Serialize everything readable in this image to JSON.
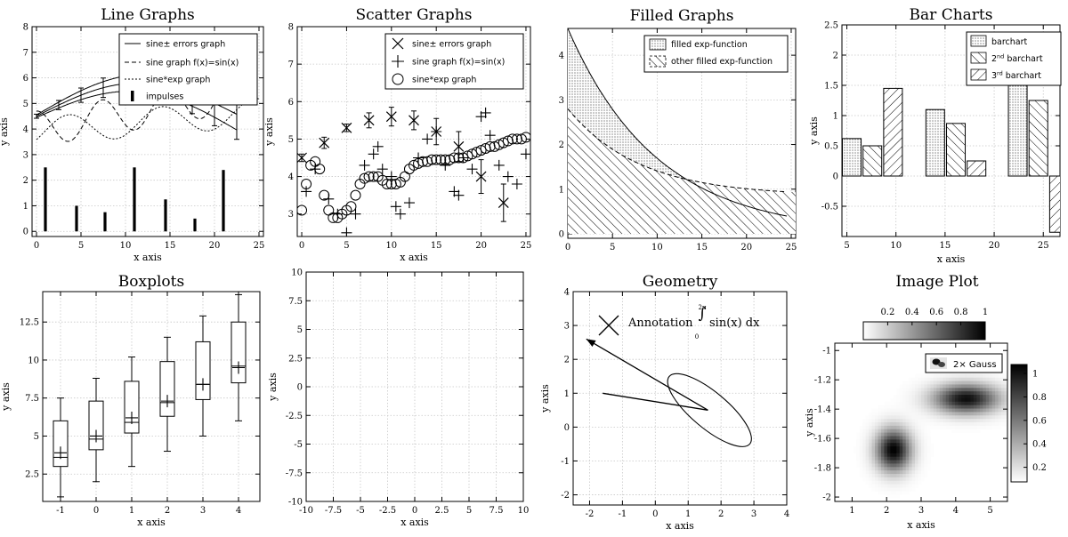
{
  "chart_data": [
    {
      "type": "line",
      "title": "Line Graphs",
      "xlabel": "x axis",
      "ylabel": "y axis",
      "xlim": [
        -0.5,
        25.5
      ],
      "ylim": [
        -0.2,
        8
      ],
      "xticks": [
        0,
        5,
        10,
        15,
        20,
        25
      ],
      "yticks": [
        0,
        1,
        2,
        3,
        4,
        5,
        6,
        7,
        8
      ],
      "grid": true,
      "legend_position": "top-right",
      "legend": [
        "sine± errors graph",
        "sine graph f(x)=sin(x)",
        "sine*exp graph",
        "impulses"
      ],
      "impulses": {
        "x": [
          1,
          4.5,
          7.7,
          11,
          14.5,
          17.8,
          21
        ],
        "y": [
          2.5,
          1,
          0.75,
          2.5,
          1.25,
          0.5,
          2.4
        ]
      }
    },
    {
      "type": "scatter",
      "title": "Scatter Graphs",
      "xlabel": "x axis",
      "ylabel": "y axis",
      "xlim": [
        -0.5,
        25.5
      ],
      "ylim": [
        2.4,
        8
      ],
      "xticks": [
        0,
        5,
        10,
        15,
        20,
        25
      ],
      "yticks": [
        3,
        4,
        5,
        6,
        7,
        8
      ],
      "grid": true,
      "legend_position": "top-right",
      "legend": [
        "sine± errors graph",
        "sine graph f(x)=sin(x)",
        "sine*exp graph"
      ],
      "series": [
        {
          "name": "sine± errors graph",
          "marker": "x",
          "x": [
            0,
            2.5,
            5,
            7.5,
            10,
            12.5,
            15,
            17.5,
            20,
            22.5
          ],
          "y": [
            4.5,
            4.9,
            5.3,
            5.5,
            5.6,
            5.5,
            5.2,
            4.8,
            4.0,
            3.3
          ],
          "err": [
            0.1,
            0.15,
            0.1,
            0.2,
            0.25,
            0.25,
            0.35,
            0.4,
            0.45,
            0.5
          ]
        },
        {
          "name": "sine graph f(x)=sin(x)",
          "marker": "+",
          "x": [
            0.5,
            1.5,
            3,
            4,
            5,
            6,
            7,
            8,
            8.5,
            9,
            10,
            10.5,
            11,
            12,
            13,
            14,
            15,
            16,
            17,
            17.5,
            18,
            19,
            20,
            20.5,
            21,
            22,
            23,
            24,
            25
          ],
          "y": [
            3.6,
            4.2,
            3.4,
            3.0,
            2.5,
            3.0,
            4.3,
            4.6,
            4.8,
            4.2,
            4.0,
            3.2,
            3.0,
            3.3,
            4.5,
            5.0,
            5.2,
            4.3,
            3.6,
            3.5,
            4.5,
            4.2,
            5.6,
            5.7,
            5.1,
            4.3,
            4.0,
            3.8,
            4.6
          ]
        },
        {
          "name": "sine*exp graph",
          "marker": "o",
          "x": [
            0,
            0.5,
            1,
            1.5,
            2,
            2.5,
            3,
            3.5,
            4,
            4.5,
            5,
            5.5,
            6,
            6.5,
            7,
            7.5,
            8,
            8.5,
            9,
            9.5,
            10,
            10.5,
            11,
            11.5,
            12,
            12.5,
            13,
            13.5,
            14,
            14.5,
            15,
            15.5,
            16,
            16.5,
            17,
            17.5,
            18,
            18.5,
            19,
            19.5,
            20,
            20.5,
            21,
            21.5,
            22,
            22.5,
            23,
            23.5,
            24,
            24.5,
            25
          ],
          "y": [
            3.1,
            3.8,
            4.3,
            4.4,
            4.2,
            3.5,
            3.1,
            2.9,
            2.9,
            3.0,
            3.1,
            3.2,
            3.5,
            3.8,
            3.95,
            4.0,
            4.0,
            4.0,
            3.9,
            3.8,
            3.8,
            3.8,
            3.85,
            4.0,
            4.2,
            4.3,
            4.35,
            4.4,
            4.4,
            4.45,
            4.45,
            4.45,
            4.45,
            4.45,
            4.5,
            4.5,
            4.5,
            4.55,
            4.6,
            4.65,
            4.7,
            4.75,
            4.8,
            4.8,
            4.85,
            4.9,
            4.95,
            5.0,
            5.0,
            5.0,
            5.05
          ]
        }
      ]
    },
    {
      "type": "area",
      "title": "Filled Graphs",
      "xlabel": "",
      "ylabel": "",
      "xlim": [
        0,
        25.5
      ],
      "ylim": [
        -0.1,
        4.6
      ],
      "xticks": [
        0,
        5,
        10,
        15,
        20,
        25
      ],
      "yticks": [
        0,
        1,
        2,
        3,
        4
      ],
      "grid": true,
      "legend_position": "top-right",
      "legend": [
        "filled exp-function",
        "other filled exp-function"
      ],
      "series": [
        {
          "name": "filled exp-function",
          "function": "4.6*exp(-x/10)"
        },
        {
          "name": "other filled exp-function",
          "function": "0.85+1.95*exp(-x/8)"
        }
      ]
    },
    {
      "type": "bar",
      "title": "Bar Charts",
      "xlabel": "x axis",
      "ylabel": "y axis",
      "xlim": [
        4.5,
        26.7
      ],
      "ylim": [
        -1,
        2.5
      ],
      "xticks": [
        5,
        10,
        15,
        20,
        25
      ],
      "yticks": [
        -0.5,
        0,
        0.5,
        1,
        1.5,
        2,
        2.5
      ],
      "grid": true,
      "legend_position": "top-right",
      "legend": [
        "barchart",
        "2nd barchart",
        "3rd barchart"
      ],
      "series": [
        {
          "name": "barchart",
          "x": [
            5.5,
            14,
            22.4
          ],
          "values": [
            0.62,
            1.1,
            1.9
          ]
        },
        {
          "name": "2nd barchart",
          "x": [
            7.6,
            16.1,
            24.5
          ],
          "values": [
            0.5,
            0.87,
            1.25
          ]
        },
        {
          "name": "3rd barchart",
          "x": [
            9.7,
            18.2,
            26.6
          ],
          "values": [
            1.45,
            0.25,
            -0.93
          ]
        }
      ]
    },
    {
      "type": "boxplot",
      "title": "Boxplots",
      "xlabel": "x axis",
      "ylabel": "y axis",
      "xlim": [
        -1.5,
        4.6
      ],
      "ylim": [
        0.7,
        14.5
      ],
      "xticks": [
        -1,
        0,
        1,
        2,
        3,
        4
      ],
      "yticks": [
        2.5,
        5,
        7.5,
        10,
        12.5
      ],
      "grid": true,
      "boxes": [
        {
          "x": -1,
          "min": 1,
          "q1": 3,
          "median": 3.6,
          "q3": 6,
          "max": 7.5,
          "mean": 3.9
        },
        {
          "x": 0,
          "min": 2,
          "q1": 4.1,
          "median": 4.8,
          "q3": 7.3,
          "max": 8.8,
          "mean": 5.0
        },
        {
          "x": 1,
          "min": 3,
          "q1": 5.2,
          "median": 5.9,
          "q3": 8.6,
          "max": 10.2,
          "mean": 6.2
        },
        {
          "x": 2,
          "min": 4,
          "q1": 6.3,
          "median": 7.2,
          "q3": 9.9,
          "max": 11.5,
          "mean": 7.3
        },
        {
          "x": 3,
          "min": 5,
          "q1": 7.4,
          "median": 8.4,
          "q3": 11.2,
          "max": 12.9,
          "mean": 8.4
        },
        {
          "x": 4,
          "min": 6,
          "q1": 8.5,
          "median": 9.6,
          "q3": 12.5,
          "max": 14.3,
          "mean": 9.5
        }
      ]
    },
    {
      "type": "scatter",
      "title": "",
      "xlabel": "x axis",
      "ylabel": "y axis",
      "xlim": [
        -10,
        10
      ],
      "ylim": [
        -10,
        10
      ],
      "xticks": [
        -10,
        -7.5,
        -5,
        -2.5,
        0,
        2.5,
        5,
        7.5,
        10
      ],
      "yticks": [
        -10,
        -7.5,
        -5,
        -2.5,
        0,
        2.5,
        5,
        7.5,
        10
      ],
      "grid": true,
      "series": []
    },
    {
      "type": "geometry",
      "title": "Geometry",
      "xlabel": "x axis",
      "ylabel": "y axis",
      "xlim": [
        -2.5,
        4
      ],
      "ylim": [
        -2.3,
        4
      ],
      "xticks": [
        -2,
        -1,
        0,
        1,
        2,
        3,
        4
      ],
      "yticks": [
        -2,
        -1,
        0,
        1,
        2,
        3,
        4
      ],
      "grid": true,
      "annotation": "Annotation",
      "formula": {
        "upper": "2π",
        "lower": "0",
        "body": "sin(x) dx"
      },
      "arrow": {
        "from": [
          1.6,
          0.5
        ],
        "to": [
          -2.1,
          2.6
        ]
      },
      "polyline": [
        [
          -1.6,
          1.0
        ],
        [
          1.6,
          0.5
        ],
        [
          -2.1,
          2.6
        ]
      ],
      "ellipse": {
        "cx": 1.65,
        "cy": 0.5,
        "rx": 1.6,
        "ry": 0.55,
        "angle_deg": -40
      },
      "marker_x": [
        -1.5,
        3.1
      ]
    },
    {
      "type": "heatmap",
      "title": "Image Plot",
      "xlabel": "x axis",
      "ylabel": "y axis",
      "xlim": [
        0.5,
        5.5
      ],
      "ylim": [
        -2.03,
        -0.95
      ],
      "xticks": [
        1,
        2,
        3,
        4,
        5
      ],
      "yticks": [
        -1,
        -1.2,
        -1.4,
        -1.6,
        -1.8,
        -2
      ],
      "legend": [
        "2× Gauss"
      ],
      "colorbar_top_ticks": [
        "0.2",
        "0.4",
        "0.6",
        "0.8",
        "1"
      ],
      "colorbar_right_ticks": [
        "0.2",
        "0.4",
        "0.6",
        "0.8",
        "1"
      ],
      "gaussians": [
        {
          "x": 2.2,
          "y": -1.68,
          "sx": 0.35,
          "sy": 0.1,
          "a": 1.0
        },
        {
          "x": 4.3,
          "y": -1.33,
          "sx": 0.65,
          "sy": 0.07,
          "a": 0.95
        }
      ]
    }
  ]
}
